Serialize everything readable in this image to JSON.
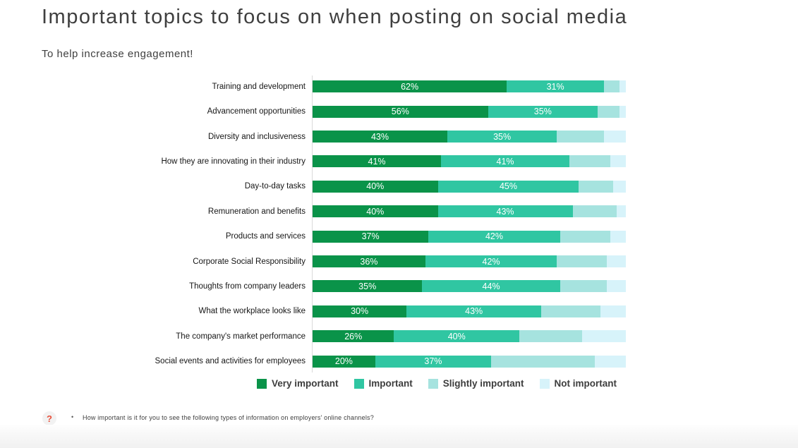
{
  "page": {
    "title": "Important topics to focus on when posting on social media",
    "subtitle": "To help increase engagement!"
  },
  "chart_data": {
    "type": "bar",
    "orientation": "horizontal_stacked",
    "unit": "%",
    "xlim": [
      0,
      100
    ],
    "grid": "off",
    "axis_baseline": "vertical line at 0",
    "legend_position": "bottom",
    "data_label_rule": "percent labels shown in white only on first two segments",
    "categories": [
      "Training and development",
      "Advancement opportunities",
      "Diversity and inclusiveness",
      "How they are innovating in their industry",
      "Day-to-day tasks",
      "Remuneration and benefits",
      "Products and services",
      "Corporate Social Responsibility",
      "Thoughts from company leaders",
      "What the workplace looks like",
      "The company's market performance",
      "Social events and activities for employees"
    ],
    "series": [
      {
        "name": "Very important",
        "color": "#0a9349",
        "data_labels": true,
        "values": [
          62,
          56,
          43,
          41,
          40,
          40,
          37,
          36,
          35,
          30,
          26,
          20
        ]
      },
      {
        "name": "Important",
        "color": "#30c6a2",
        "data_labels": true,
        "values": [
          31,
          35,
          35,
          41,
          45,
          43,
          42,
          42,
          44,
          43,
          40,
          37
        ]
      },
      {
        "name": "Slightly important",
        "color": "#a6e3df",
        "data_labels": false,
        "values": [
          5,
          7,
          15,
          13,
          11,
          14,
          16,
          16,
          15,
          19,
          20,
          33
        ]
      },
      {
        "name": "Not important",
        "color": "#d7f3fa",
        "data_labels": false,
        "values": [
          2,
          2,
          7,
          5,
          4,
          3,
          5,
          6,
          6,
          8,
          14,
          10
        ]
      }
    ]
  },
  "footnote": {
    "help_icon": "?",
    "bullet": "•",
    "question": "How important is it for you to see the following types of information on employers' online channels?"
  },
  "colors": {
    "title_text": "#3f3f3f",
    "category_text": "#161616",
    "legend_text": "#3d3d3d",
    "axis_line": "#d9d9d9",
    "bar_label_text": "#ffffff",
    "help_icon_color": "#e8503c",
    "help_icon_bg": "#f2f2f2"
  }
}
